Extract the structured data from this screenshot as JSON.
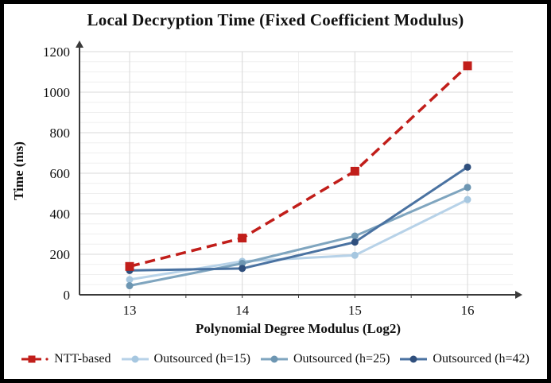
{
  "title": "Local Decryption Time (Fixed Coefficient Modulus)",
  "chart_data": {
    "type": "line",
    "title": "Local Decryption Time (Fixed Coefficient Modulus)",
    "xlabel": "Polynomial Degree Modulus (Log2)",
    "ylabel": "Time (ms)",
    "x": [
      13,
      14,
      15,
      16
    ],
    "x_tick_labels": [
      "13",
      "14",
      "15",
      "16"
    ],
    "ylim": [
      0,
      1200
    ],
    "y_major_ticks": [
      0,
      200,
      400,
      600,
      800,
      1000,
      1200
    ],
    "y_minor_step": 50,
    "x_minor_step": 0.5,
    "grid": "major-and-minor",
    "legend_position": "bottom",
    "axis_color": "#3a3a3a",
    "grid_major_color": "#d8d8d8",
    "grid_minor_color": "#efefef",
    "series": [
      {
        "name": "NTT-based",
        "values": [
          140,
          280,
          610,
          1130
        ],
        "color": "#C11E1A",
        "marker_color": "#C11E1A",
        "marker": "square",
        "dashed": true
      },
      {
        "name": "Outsourced (h=15)",
        "values": [
          75,
          165,
          195,
          470
        ],
        "color": "#B7D2E8",
        "marker_color": "#A6C7E0",
        "marker": "circle",
        "dashed": false
      },
      {
        "name": "Outsourced (h=25)",
        "values": [
          45,
          155,
          290,
          530
        ],
        "color": "#7FA5BF",
        "marker_color": "#6D96B2",
        "marker": "circle",
        "dashed": false
      },
      {
        "name": "Outsourced (h=42)",
        "values": [
          120,
          130,
          260,
          630
        ],
        "color": "#4A72A1",
        "marker_color": "#2F4F7D",
        "marker": "circle",
        "dashed": false
      }
    ]
  }
}
